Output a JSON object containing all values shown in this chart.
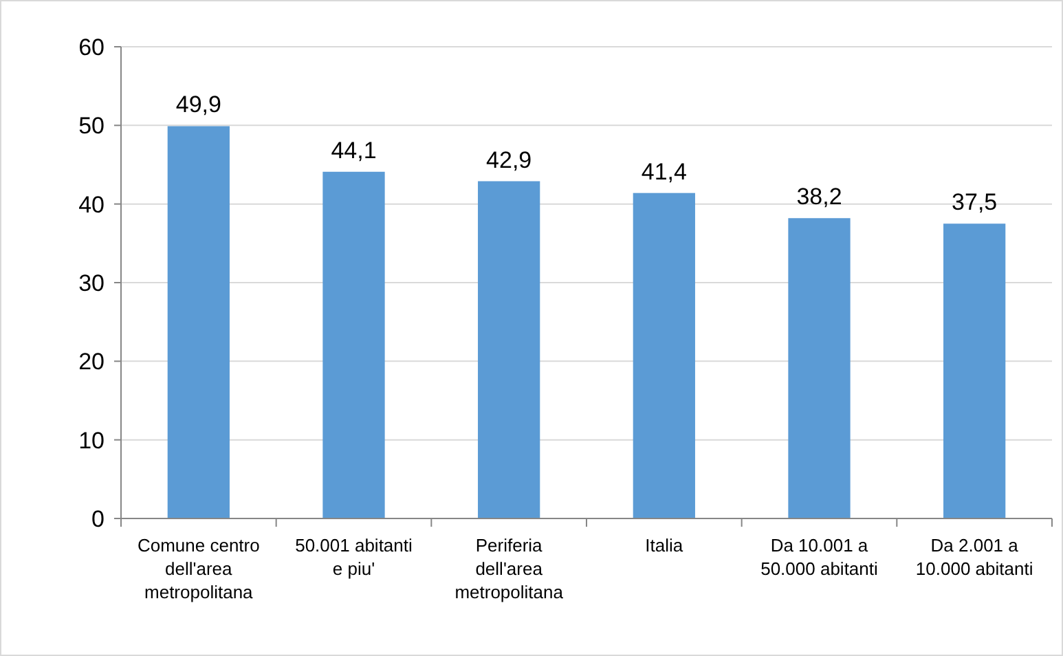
{
  "chart_data": {
    "type": "bar",
    "categories": [
      "Comune centro dell'area metropolitana",
      "50.001 abitanti e piu'",
      "Periferia dell'area metropolitana",
      "Italia",
      "Da 10.001 a 50.000 abitanti",
      "Da 2.001 a 10.000 abitanti"
    ],
    "values": [
      49.9,
      44.1,
      42.9,
      41.4,
      38.2,
      37.5
    ],
    "value_labels": [
      "49,9",
      "44,1",
      "42,9",
      "41,4",
      "38,2",
      "37,5"
    ],
    "color": "#5b9bd5",
    "ylim": [
      0,
      60
    ],
    "yticks": [
      0,
      10,
      20,
      30,
      40,
      50,
      60
    ],
    "grid": "y"
  }
}
